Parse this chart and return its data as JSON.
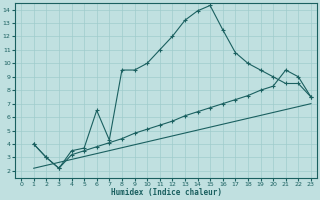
{
  "xlabel": "Humidex (Indice chaleur)",
  "bg_color": "#c0e0e0",
  "grid_color": "#a0cccc",
  "line_color": "#1a6060",
  "xlim": [
    -0.5,
    23.5
  ],
  "ylim": [
    1.5,
    14.5
  ],
  "xticks": [
    0,
    1,
    2,
    3,
    4,
    5,
    6,
    7,
    8,
    9,
    10,
    11,
    12,
    13,
    14,
    15,
    16,
    17,
    18,
    19,
    20,
    21,
    22,
    23
  ],
  "yticks": [
    2,
    3,
    4,
    5,
    6,
    7,
    8,
    9,
    10,
    11,
    12,
    13,
    14
  ],
  "line1_x": [
    1,
    2,
    3,
    4,
    5,
    6,
    7,
    8,
    9,
    10,
    11,
    12,
    13,
    14,
    15,
    16,
    17,
    18,
    19,
    20,
    21,
    22,
    23
  ],
  "line1_y": [
    4.0,
    3.0,
    2.2,
    3.5,
    3.7,
    6.5,
    4.3,
    9.5,
    9.5,
    10.0,
    11.0,
    12.0,
    13.2,
    13.9,
    14.3,
    12.5,
    10.8,
    10.0,
    9.5,
    9.0,
    8.5,
    8.5,
    7.5
  ],
  "line2_x": [
    1,
    2,
    3,
    4,
    5,
    6,
    7,
    8,
    9,
    10,
    11,
    12,
    13,
    14,
    15,
    16,
    17,
    18,
    19,
    20,
    21,
    22,
    23
  ],
  "line2_y": [
    4.0,
    3.0,
    2.2,
    3.2,
    3.5,
    3.8,
    4.1,
    4.4,
    4.8,
    5.1,
    5.4,
    5.7,
    6.1,
    6.4,
    6.7,
    7.0,
    7.3,
    7.6,
    8.0,
    8.3,
    9.5,
    9.0,
    7.5
  ],
  "line3_x": [
    1,
    23
  ],
  "line3_y": [
    2.2,
    7.0
  ]
}
